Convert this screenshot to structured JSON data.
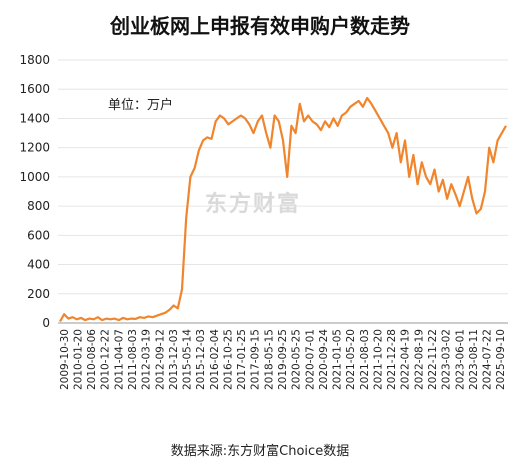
{
  "chart_data": {
    "type": "line",
    "title": "创业板网上申报有效申购户数走势",
    "unit_label": "单位：万户",
    "source_note": "数据来源:东方财富Choice数据",
    "watermark": "东方财富",
    "ylim": [
      0,
      1800
    ],
    "y_ticks": [
      "0",
      "200",
      "400",
      "600",
      "800",
      "1000",
      "1200",
      "1400",
      "1600",
      "1800"
    ],
    "x_ticks": [
      "2009-10-30",
      "2010-01-20",
      "2010-08-06",
      "2010-12-22",
      "2011-04-07",
      "2011-08-03",
      "2012-03-19",
      "2012-09-12",
      "2013-12-03",
      "2015-05-14",
      "2015-12-03",
      "2016-02-04",
      "2016-10-25",
      "2017-01-25",
      "2017-09-15",
      "2018-05-15",
      "2019-09-25",
      "2020-05-25",
      "2020-07-01",
      "2020-09-24",
      "2021-01-05",
      "2021-05-20",
      "2021-08-03",
      "2021-10-20",
      "2021-12-28",
      "2022-04-19",
      "2022-08-19",
      "2022-11-22",
      "2023-03-02",
      "2023-06-01",
      "2023-08-11",
      "2024-07-22",
      "2025-09-10"
    ],
    "line_color": "#f0852d",
    "series": [
      {
        "values": [
          10,
          60,
          30,
          40,
          25,
          35,
          20,
          30,
          25,
          40,
          20,
          30,
          25,
          30,
          20,
          35,
          25,
          30,
          28,
          40,
          35,
          45,
          40,
          50,
          60,
          70,
          90,
          120,
          100,
          230,
          720,
          1000,
          1060,
          1180,
          1250,
          1270,
          1260,
          1380,
          1420,
          1400,
          1360,
          1380,
          1400,
          1420,
          1400,
          1360,
          1300,
          1380,
          1420,
          1300,
          1200,
          1420,
          1380,
          1250,
          1000,
          1350,
          1300,
          1500,
          1380,
          1420,
          1380,
          1360,
          1320,
          1380,
          1340,
          1400,
          1350,
          1420,
          1440,
          1480,
          1500,
          1520,
          1480,
          1540,
          1500,
          1450,
          1400,
          1350,
          1300,
          1200,
          1300,
          1100,
          1250,
          1000,
          1150,
          950,
          1100,
          1000,
          950,
          1050,
          900,
          980,
          850,
          950,
          880,
          800,
          900,
          1000,
          850,
          750,
          780,
          900,
          1200,
          1100,
          1250,
          1300,
          1350
        ]
      }
    ]
  }
}
